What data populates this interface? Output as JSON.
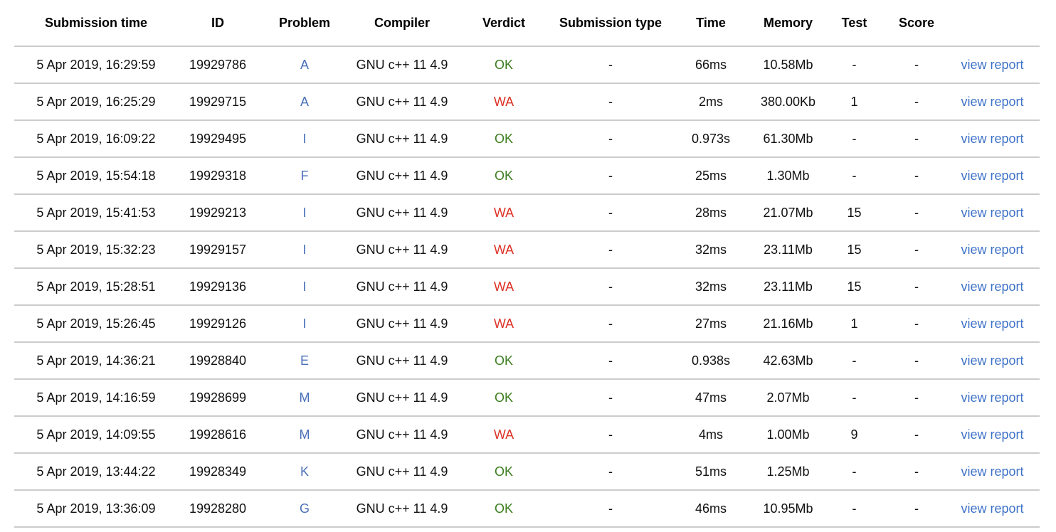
{
  "colors": {
    "text": "#111111",
    "header-text": "#000000",
    "row-border": "#cccccc",
    "problem-link": "#4a70b8",
    "verdict-ok": "#3a7d1e",
    "verdict-wa": "#dd3226",
    "report-link": "#3e72c8"
  },
  "table": {
    "columns": [
      {
        "key": "submission_time",
        "label": "Submission time",
        "kind": "text"
      },
      {
        "key": "id",
        "label": "ID",
        "kind": "text"
      },
      {
        "key": "problem",
        "label": "Problem",
        "kind": "problem-link"
      },
      {
        "key": "compiler",
        "label": "Compiler",
        "kind": "text"
      },
      {
        "key": "verdict",
        "label": "Verdict",
        "kind": "verdict"
      },
      {
        "key": "submission_type",
        "label": "Submission type",
        "kind": "text"
      },
      {
        "key": "time",
        "label": "Time",
        "kind": "text"
      },
      {
        "key": "memory",
        "label": "Memory",
        "kind": "text"
      },
      {
        "key": "test",
        "label": "Test",
        "kind": "text"
      },
      {
        "key": "score",
        "label": "Score",
        "kind": "text"
      },
      {
        "key": "report",
        "label": "",
        "kind": "report-link"
      }
    ],
    "rows": [
      {
        "submission_time": "5 Apr 2019, 16:29:59",
        "id": "19929786",
        "problem": "A",
        "compiler": "GNU c++ 11 4.9",
        "verdict": "OK",
        "submission_type": "-",
        "time": "66ms",
        "memory": "10.58Mb",
        "test": "-",
        "score": "-",
        "report": "view report"
      },
      {
        "submission_time": "5 Apr 2019, 16:25:29",
        "id": "19929715",
        "problem": "A",
        "compiler": "GNU c++ 11 4.9",
        "verdict": "WA",
        "submission_type": "-",
        "time": "2ms",
        "memory": "380.00Kb",
        "test": "1",
        "score": "-",
        "report": "view report"
      },
      {
        "submission_time": "5 Apr 2019, 16:09:22",
        "id": "19929495",
        "problem": "I",
        "compiler": "GNU c++ 11 4.9",
        "verdict": "OK",
        "submission_type": "-",
        "time": "0.973s",
        "memory": "61.30Mb",
        "test": "-",
        "score": "-",
        "report": "view report"
      },
      {
        "submission_time": "5 Apr 2019, 15:54:18",
        "id": "19929318",
        "problem": "F",
        "compiler": "GNU c++ 11 4.9",
        "verdict": "OK",
        "submission_type": "-",
        "time": "25ms",
        "memory": "1.30Mb",
        "test": "-",
        "score": "-",
        "report": "view report"
      },
      {
        "submission_time": "5 Apr 2019, 15:41:53",
        "id": "19929213",
        "problem": "I",
        "compiler": "GNU c++ 11 4.9",
        "verdict": "WA",
        "submission_type": "-",
        "time": "28ms",
        "memory": "21.07Mb",
        "test": "15",
        "score": "-",
        "report": "view report"
      },
      {
        "submission_time": "5 Apr 2019, 15:32:23",
        "id": "19929157",
        "problem": "I",
        "compiler": "GNU c++ 11 4.9",
        "verdict": "WA",
        "submission_type": "-",
        "time": "32ms",
        "memory": "23.11Mb",
        "test": "15",
        "score": "-",
        "report": "view report"
      },
      {
        "submission_time": "5 Apr 2019, 15:28:51",
        "id": "19929136",
        "problem": "I",
        "compiler": "GNU c++ 11 4.9",
        "verdict": "WA",
        "submission_type": "-",
        "time": "32ms",
        "memory": "23.11Mb",
        "test": "15",
        "score": "-",
        "report": "view report"
      },
      {
        "submission_time": "5 Apr 2019, 15:26:45",
        "id": "19929126",
        "problem": "I",
        "compiler": "GNU c++ 11 4.9",
        "verdict": "WA",
        "submission_type": "-",
        "time": "27ms",
        "memory": "21.16Mb",
        "test": "1",
        "score": "-",
        "report": "view report"
      },
      {
        "submission_time": "5 Apr 2019, 14:36:21",
        "id": "19928840",
        "problem": "E",
        "compiler": "GNU c++ 11 4.9",
        "verdict": "OK",
        "submission_type": "-",
        "time": "0.938s",
        "memory": "42.63Mb",
        "test": "-",
        "score": "-",
        "report": "view report"
      },
      {
        "submission_time": "5 Apr 2019, 14:16:59",
        "id": "19928699",
        "problem": "M",
        "compiler": "GNU c++ 11 4.9",
        "verdict": "OK",
        "submission_type": "-",
        "time": "47ms",
        "memory": "2.07Mb",
        "test": "-",
        "score": "-",
        "report": "view report"
      },
      {
        "submission_time": "5 Apr 2019, 14:09:55",
        "id": "19928616",
        "problem": "M",
        "compiler": "GNU c++ 11 4.9",
        "verdict": "WA",
        "submission_type": "-",
        "time": "4ms",
        "memory": "1.00Mb",
        "test": "9",
        "score": "-",
        "report": "view report"
      },
      {
        "submission_time": "5 Apr 2019, 13:44:22",
        "id": "19928349",
        "problem": "K",
        "compiler": "GNU c++ 11 4.9",
        "verdict": "OK",
        "submission_type": "-",
        "time": "51ms",
        "memory": "1.25Mb",
        "test": "-",
        "score": "-",
        "report": "view report"
      },
      {
        "submission_time": "5 Apr 2019, 13:36:09",
        "id": "19928280",
        "problem": "G",
        "compiler": "GNU c++ 11 4.9",
        "verdict": "OK",
        "submission_type": "-",
        "time": "46ms",
        "memory": "10.95Mb",
        "test": "-",
        "score": "-",
        "report": "view report"
      }
    ]
  }
}
